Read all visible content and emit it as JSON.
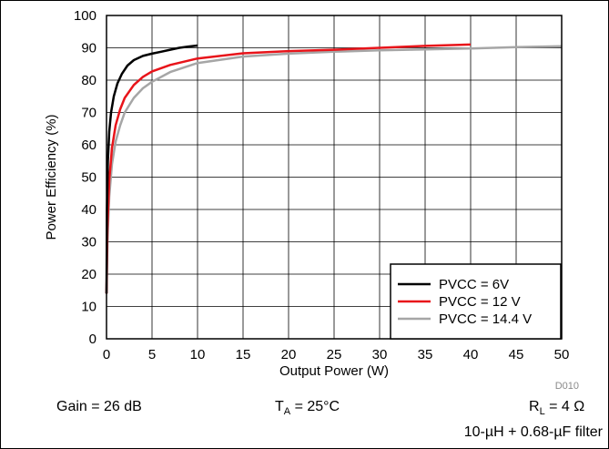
{
  "chart_data": {
    "type": "line",
    "title": "",
    "xlabel": "Output Power (W)",
    "ylabel": "Power Efficiency (%)",
    "xlim": [
      0,
      50
    ],
    "ylim": [
      0,
      100
    ],
    "xticks": [
      0,
      5,
      10,
      15,
      20,
      25,
      30,
      35,
      40,
      45,
      50
    ],
    "yticks": [
      0,
      10,
      20,
      30,
      40,
      50,
      60,
      70,
      80,
      90,
      100
    ],
    "grid": true,
    "legend_position": "bottom-right",
    "series": [
      {
        "name": "PVCC = 6V",
        "color": "#000000",
        "points": [
          [
            0,
            14
          ],
          [
            0.05,
            40
          ],
          [
            0.15,
            55
          ],
          [
            0.3,
            64
          ],
          [
            0.5,
            70
          ],
          [
            0.8,
            75
          ],
          [
            1.2,
            79
          ],
          [
            1.7,
            82
          ],
          [
            2.3,
            84.5
          ],
          [
            3,
            86.2
          ],
          [
            4,
            87.5
          ],
          [
            5,
            88.2
          ],
          [
            6,
            88.8
          ],
          [
            7,
            89.4
          ],
          [
            8,
            90
          ],
          [
            9,
            90.4
          ],
          [
            10,
            90.7
          ]
        ]
      },
      {
        "name": "PVCC = 12 V",
        "color": "#e8141a",
        "points": [
          [
            0,
            14
          ],
          [
            0.1,
            34
          ],
          [
            0.3,
            49
          ],
          [
            0.6,
            59
          ],
          [
            1,
            66
          ],
          [
            1.5,
            71
          ],
          [
            2,
            74.5
          ],
          [
            3,
            78.5
          ],
          [
            4,
            81
          ],
          [
            5,
            82.7
          ],
          [
            7,
            84.7
          ],
          [
            10,
            86.7
          ],
          [
            15,
            88.3
          ],
          [
            20,
            89
          ],
          [
            25,
            89.4
          ],
          [
            30,
            90
          ],
          [
            35,
            90.6
          ],
          [
            40,
            91
          ]
        ]
      },
      {
        "name": "PVCC = 14.4 V",
        "color": "#a6a6a6",
        "points": [
          [
            0,
            14
          ],
          [
            0.1,
            30
          ],
          [
            0.3,
            44
          ],
          [
            0.6,
            54
          ],
          [
            1,
            61
          ],
          [
            1.5,
            66
          ],
          [
            2,
            70
          ],
          [
            3,
            74.5
          ],
          [
            4,
            77.5
          ],
          [
            5,
            79.5
          ],
          [
            7,
            82.5
          ],
          [
            10,
            85.3
          ],
          [
            15,
            87.3
          ],
          [
            20,
            88.2
          ],
          [
            25,
            88.8
          ],
          [
            30,
            89.2
          ],
          [
            35,
            89.5
          ],
          [
            40,
            89.8
          ],
          [
            45,
            90.2
          ],
          [
            50,
            90.5
          ]
        ]
      }
    ],
    "doc_id": "D010"
  },
  "conditions": {
    "gain_text": "Gain = 26 dB",
    "temp_prefix": "T",
    "temp_sub": "A",
    "temp_suffix": " = 25°C",
    "load_prefix": "R",
    "load_sub": "L",
    "load_suffix": " = 4 Ω",
    "filter_text": "10-µH + 0.68-µF filter"
  }
}
